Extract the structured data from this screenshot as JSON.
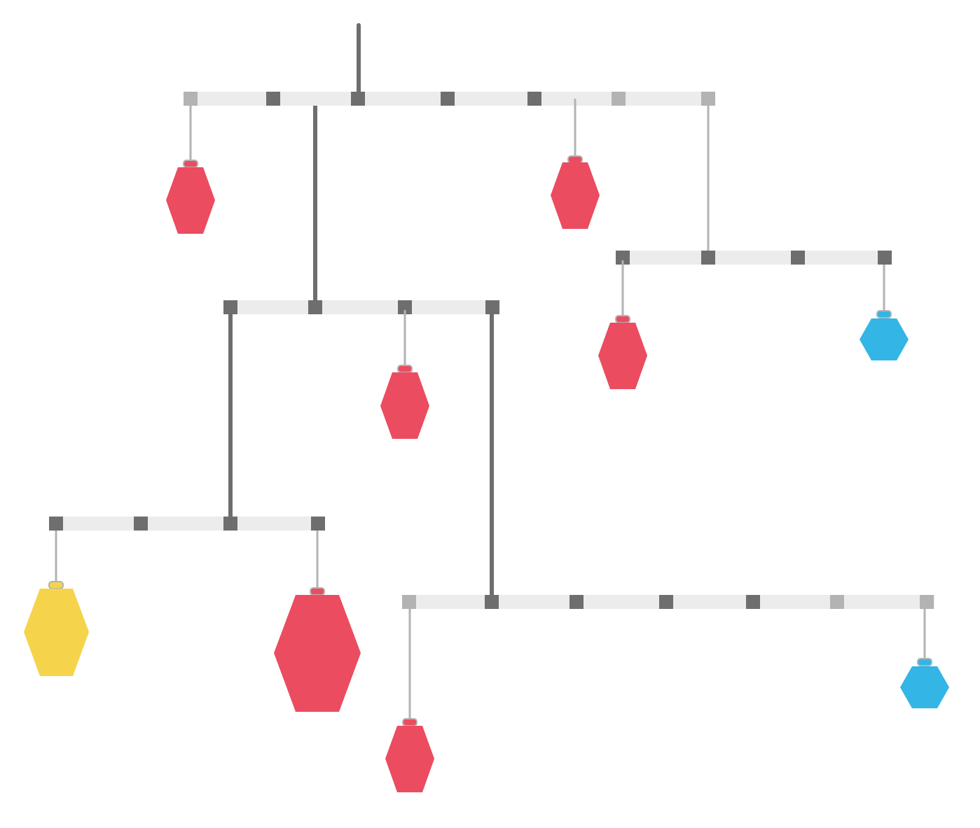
{
  "colors": {
    "background": "#ffffff",
    "beam": "#ececec",
    "rod": "#6e6e6e",
    "string": "#b3b3b3",
    "pivot_dark": "#6e6e6e",
    "pivot_light": "#b3b3b3"
  },
  "ornament_palette": {
    "red": "#eb4c60",
    "yellow": "#f5d44c",
    "blue": "#33b5e5"
  },
  "ornaments": [
    {
      "name": "ornament-red-1",
      "color": "red",
      "size": "small"
    },
    {
      "name": "ornament-red-2",
      "color": "red",
      "size": "small"
    },
    {
      "name": "ornament-red-3",
      "color": "red",
      "size": "small"
    },
    {
      "name": "ornament-red-4",
      "color": "red",
      "size": "small"
    },
    {
      "name": "ornament-blue-1",
      "color": "blue",
      "size": "tiny"
    },
    {
      "name": "ornament-yellow-1",
      "color": "yellow",
      "size": "medium"
    },
    {
      "name": "ornament-red-5",
      "color": "red",
      "size": "large"
    },
    {
      "name": "ornament-red-6",
      "color": "red",
      "size": "small"
    },
    {
      "name": "ornament-blue-2",
      "color": "blue",
      "size": "tiny"
    }
  ]
}
